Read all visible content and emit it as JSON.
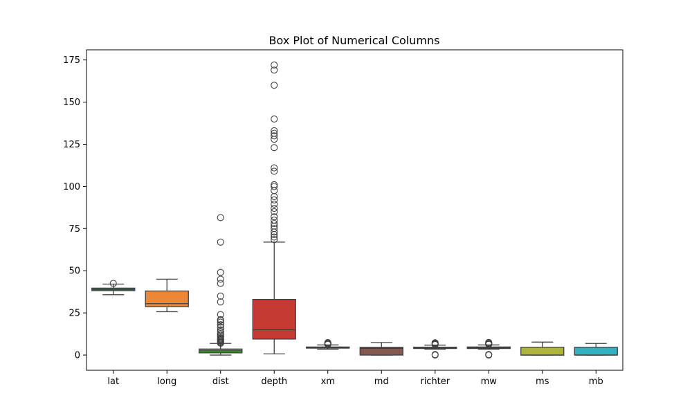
{
  "chart_data": {
    "type": "box",
    "title": "Box Plot of Numerical Columns",
    "xlabel": "",
    "ylabel": "",
    "ylim": [
      -9,
      181
    ],
    "yticks": [
      0,
      25,
      50,
      75,
      100,
      125,
      150,
      175
    ],
    "grid": false,
    "categories": [
      "lat",
      "long",
      "dist",
      "depth",
      "xm",
      "md",
      "richter",
      "mw",
      "ms",
      "mb"
    ],
    "series": [
      {
        "category": "lat",
        "color": "#3b75af",
        "whislo": 35.8,
        "q1": 38.2,
        "med": 38.9,
        "q3": 39.7,
        "whishi": 42.1,
        "fliers": [
          42.5
        ]
      },
      {
        "category": "long",
        "color": "#ef8636",
        "whislo": 25.7,
        "q1": 28.7,
        "med": 30.5,
        "q3": 38.0,
        "whishi": 45.0,
        "fliers": []
      },
      {
        "category": "dist",
        "color": "#519e3e",
        "whislo": 0.0,
        "q1": 1.3,
        "med": 2.5,
        "q3": 3.6,
        "whishi": 6.9,
        "fliers": [
          7.0,
          7.5,
          8.0,
          8.5,
          9.0,
          9.5,
          10.0,
          11.0,
          12.0,
          13.0,
          14.0,
          15.0,
          16.5,
          18.0,
          19.5,
          20.5,
          21.0,
          24.0,
          31.5,
          35.0,
          42.5,
          45.0,
          49.0,
          67.0,
          81.5
        ]
      },
      {
        "category": "depth",
        "color": "#c53a32",
        "whislo": 0.7,
        "q1": 9.5,
        "med": 15.0,
        "q3": 33.0,
        "whishi": 67.0,
        "fliers": [
          68.5,
          70.0,
          71.5,
          73.0,
          75.0,
          76.5,
          78.0,
          80.0,
          82.0,
          85.0,
          87.0,
          89.5,
          92.0,
          94.0,
          97.5,
          100.0,
          101.0,
          109.0,
          111.0,
          123.0,
          128.0,
          130.0,
          131.5,
          133.0,
          140.0,
          160.0,
          169.0,
          172.0
        ]
      },
      {
        "category": "xm",
        "color": "#8d69b8",
        "whislo": 3.5,
        "q1": 4.1,
        "med": 4.4,
        "q3": 4.8,
        "whishi": 6.0,
        "fliers": [
          6.3,
          6.7,
          7.0,
          7.4
        ]
      },
      {
        "category": "md",
        "color": "#84584e",
        "whislo": 0.0,
        "q1": 0.0,
        "med": 4.0,
        "q3": 4.6,
        "whishi": 7.4,
        "fliers": []
      },
      {
        "category": "richter",
        "color": "#d57dbe",
        "whislo": 3.5,
        "q1": 3.9,
        "med": 4.2,
        "q3": 4.7,
        "whishi": 5.9,
        "fliers": [
          0.0,
          0.3,
          6.2,
          6.6,
          7.0,
          7.3
        ]
      },
      {
        "category": "mw",
        "color": "#7f7f7f",
        "whislo": 3.5,
        "q1": 3.9,
        "med": 4.3,
        "q3": 4.8,
        "whishi": 6.0,
        "fliers": [
          0.0,
          0.3,
          6.3,
          6.7,
          7.0,
          7.5
        ]
      },
      {
        "category": "ms",
        "color": "#afb53c",
        "whislo": 0.0,
        "q1": 0.0,
        "med": 0.0,
        "q3": 4.6,
        "whishi": 7.7,
        "fliers": []
      },
      {
        "category": "mb",
        "color": "#2fb1c1",
        "whislo": 0.0,
        "q1": 0.0,
        "med": 0.0,
        "q3": 4.6,
        "whishi": 6.9,
        "fliers": []
      }
    ]
  }
}
